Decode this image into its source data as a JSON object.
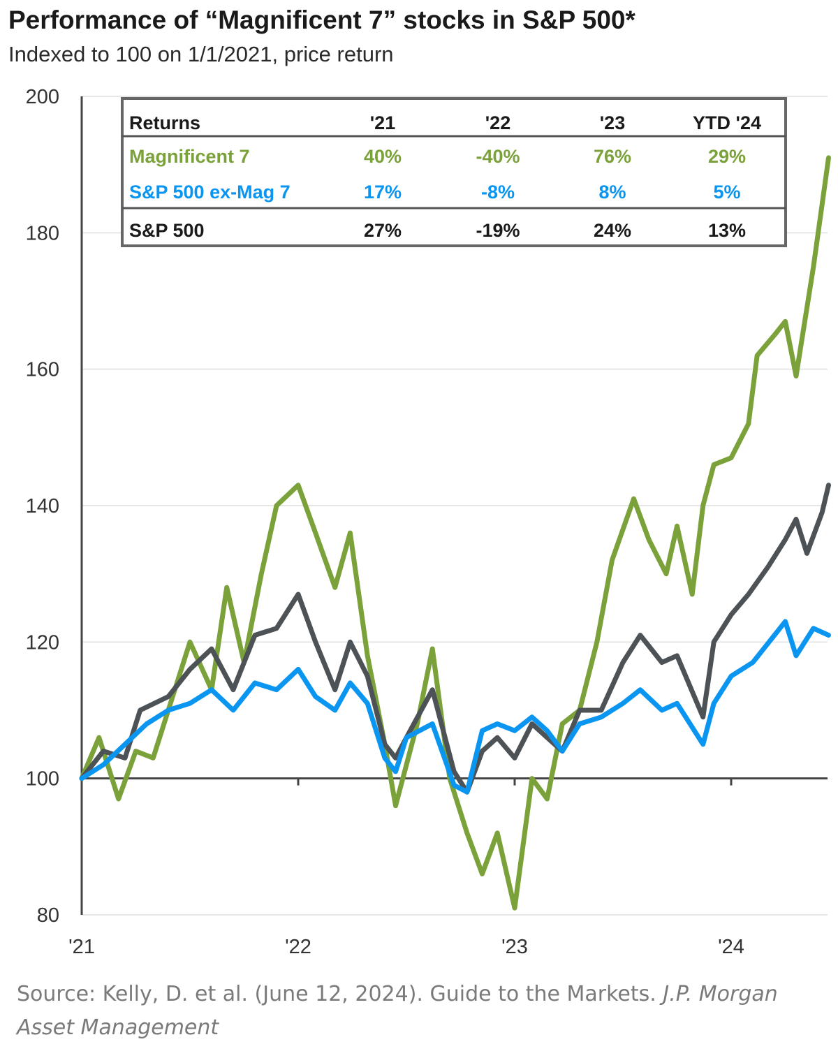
{
  "chart_data": {
    "type": "line",
    "title": "Performance of “Magnificent 7” stocks in S&P 500*",
    "subtitle": "Indexed to 100 on 1/1/2021, price return",
    "xlabel": "",
    "ylabel": "",
    "ylim": [
      80,
      200
    ],
    "yticks": [
      80,
      100,
      120,
      140,
      160,
      180,
      200
    ],
    "xlim": [
      2021.0,
      2024.45
    ],
    "xticks": [
      {
        "value": 2021,
        "label": "'21"
      },
      {
        "value": 2022,
        "label": "'22"
      },
      {
        "value": 2023,
        "label": "'23"
      },
      {
        "value": 2024,
        "label": "'24"
      }
    ],
    "grid": true,
    "reference_line": 100,
    "series": [
      {
        "name": "Magnificent 7",
        "color": "#7ba23a",
        "x": [
          2021.0,
          2021.08,
          2021.17,
          2021.25,
          2021.33,
          2021.42,
          2021.5,
          2021.6,
          2021.67,
          2021.75,
          2021.83,
          2021.9,
          2022.0,
          2022.08,
          2022.17,
          2022.24,
          2022.32,
          2022.4,
          2022.45,
          2022.55,
          2022.62,
          2022.7,
          2022.78,
          2022.85,
          2022.92,
          2023.0,
          2023.08,
          2023.15,
          2023.22,
          2023.3,
          2023.38,
          2023.45,
          2023.55,
          2023.62,
          2023.7,
          2023.75,
          2023.82,
          2023.87,
          2023.92,
          2024.0,
          2024.08,
          2024.12,
          2024.2,
          2024.25,
          2024.3,
          2024.38,
          2024.45
        ],
        "y": [
          100,
          106,
          97,
          104,
          103,
          112,
          120,
          113,
          128,
          117,
          130,
          140,
          143,
          136,
          128,
          136,
          118,
          105,
          96,
          108,
          119,
          100,
          92,
          86,
          92,
          81,
          100,
          97,
          108,
          110,
          120,
          132,
          141,
          135,
          130,
          137,
          127,
          140,
          146,
          147,
          152,
          162,
          165,
          167,
          159,
          175,
          191
        ]
      },
      {
        "name": "S&P 500",
        "color": "#4d5256",
        "x": [
          2021.0,
          2021.1,
          2021.2,
          2021.27,
          2021.4,
          2021.5,
          2021.6,
          2021.7,
          2021.8,
          2021.9,
          2022.0,
          2022.08,
          2022.17,
          2022.24,
          2022.32,
          2022.4,
          2022.45,
          2022.5,
          2022.62,
          2022.72,
          2022.78,
          2022.85,
          2022.92,
          2023.0,
          2023.08,
          2023.15,
          2023.22,
          2023.3,
          2023.4,
          2023.5,
          2023.58,
          2023.68,
          2023.75,
          2023.83,
          2023.87,
          2023.92,
          2024.0,
          2024.08,
          2024.17,
          2024.25,
          2024.3,
          2024.35,
          2024.42,
          2024.45
        ],
        "y": [
          100,
          104,
          103,
          110,
          112,
          116,
          119,
          113,
          121,
          122,
          127,
          120,
          113,
          120,
          115,
          105,
          103,
          106,
          113,
          101,
          98,
          104,
          106,
          103,
          108,
          106,
          104,
          110,
          110,
          117,
          121,
          117,
          118,
          112,
          109,
          120,
          124,
          127,
          131,
          135,
          138,
          133,
          139,
          143
        ]
      },
      {
        "name": "S&P 500 ex-Mag 7",
        "color": "#0a96f0",
        "x": [
          2021.0,
          2021.1,
          2021.2,
          2021.3,
          2021.4,
          2021.5,
          2021.6,
          2021.7,
          2021.8,
          2021.9,
          2022.0,
          2022.08,
          2022.17,
          2022.24,
          2022.32,
          2022.4,
          2022.45,
          2022.5,
          2022.62,
          2022.72,
          2022.78,
          2022.85,
          2022.92,
          2023.0,
          2023.08,
          2023.15,
          2023.22,
          2023.3,
          2023.4,
          2023.5,
          2023.58,
          2023.68,
          2023.75,
          2023.83,
          2023.87,
          2023.92,
          2024.0,
          2024.1,
          2024.2,
          2024.25,
          2024.3,
          2024.38,
          2024.45
        ],
        "y": [
          100,
          102,
          105,
          108,
          110,
          111,
          113,
          110,
          114,
          113,
          116,
          112,
          110,
          114,
          111,
          103,
          101,
          106,
          108,
          99,
          98,
          107,
          108,
          107,
          109,
          107,
          104,
          108,
          109,
          111,
          113,
          110,
          111,
          107,
          105,
          111,
          115,
          117,
          121,
          123,
          118,
          122,
          121
        ]
      }
    ],
    "table": {
      "headers": [
        "Returns",
        "'21",
        "'22",
        "'23",
        "YTD '24"
      ],
      "rows": [
        {
          "label": "Magnificent 7",
          "values": [
            "40%",
            "-40%",
            "76%",
            "29%"
          ],
          "color": "#7ba23a"
        },
        {
          "label": "S&P 500 ex-Mag 7",
          "values": [
            "17%",
            "-8%",
            "8%",
            "5%"
          ],
          "color": "#0a96f0"
        },
        {
          "label": "S&P 500",
          "values": [
            "27%",
            "-19%",
            "24%",
            "13%"
          ],
          "color": "#1a1a1a"
        }
      ]
    }
  },
  "source": {
    "text": "Source: Kelly, D. et al. (June 12, 2024). Guide to the Markets. ",
    "italic": "J.P. Morgan Asset Management"
  }
}
